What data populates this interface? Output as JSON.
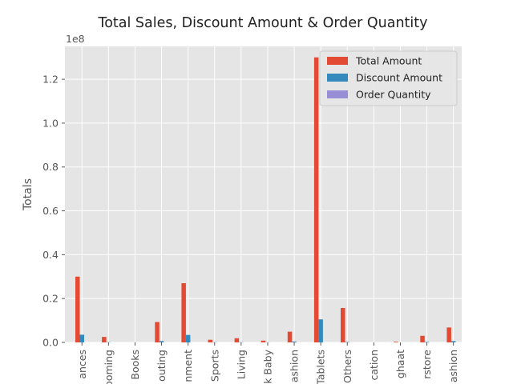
{
  "chart_data": {
    "type": "bar",
    "title": "Total Sales, Discount Amount & Order Quantity",
    "xlabel": "",
    "ylabel": "Totals",
    "y_multiplier_label": "1e8",
    "ylim": [
      0,
      1.35
    ],
    "y_ticks": [
      "0.0",
      "0.2",
      "0.4",
      "0.6",
      "0.8",
      "1.0",
      "1.2"
    ],
    "grid": true,
    "legend_position": "top-right",
    "categories": [
      "ances",
      "ooming",
      "Books",
      "outing",
      "nment",
      "Sports",
      "Living",
      "k Baby",
      "ashion",
      "Tablets",
      "Others",
      "cation",
      "ghaat",
      "rstore",
      "ashion"
    ],
    "series": [
      {
        "name": "Total Amount",
        "color": "#E24A33",
        "values": [
          0.3,
          0.025,
          0.0,
          0.093,
          0.27,
          0.012,
          0.019,
          0.008,
          0.049,
          1.3,
          0.157,
          0.0,
          0.003,
          0.03,
          0.068
        ]
      },
      {
        "name": "Discount Amount",
        "color": "#348ABD",
        "values": [
          0.035,
          0.001,
          0.0,
          0.006,
          0.034,
          0.001,
          0.001,
          0.0005,
          0.004,
          0.105,
          0.002,
          0.0,
          0.0,
          0.002,
          0.006
        ]
      },
      {
        "name": "Order Quantity",
        "color": "#988ED5",
        "values": [
          0,
          0,
          0,
          0,
          0,
          0,
          0,
          0,
          0,
          0,
          0,
          0,
          0,
          0,
          0
        ]
      }
    ]
  }
}
